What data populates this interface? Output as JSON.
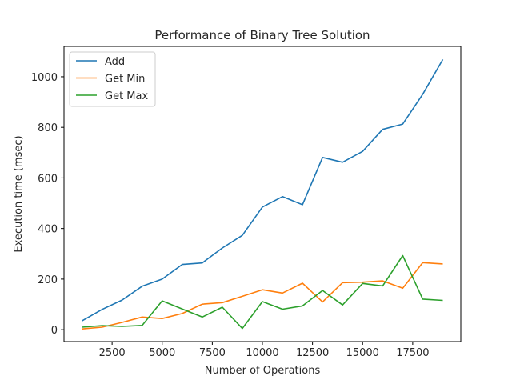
{
  "chart_data": {
    "type": "line",
    "title": "Performance of Binary Tree Solution",
    "xlabel": "Number of Operations",
    "ylabel": "Execution time (msec)",
    "xlim": [
      100,
      19900
    ],
    "ylim": [
      -47,
      1120
    ],
    "xticks": [
      2500,
      5000,
      7500,
      10000,
      12500,
      15000,
      17500
    ],
    "xtick_labels": [
      "2500",
      "5000",
      "7500",
      "10000",
      "12500",
      "15000",
      "17500"
    ],
    "yticks": [
      0,
      200,
      400,
      600,
      800,
      1000
    ],
    "ytick_labels": [
      "0",
      "200",
      "400",
      "600",
      "800",
      "1000"
    ],
    "grid": false,
    "legend_position": "upper-left",
    "x": [
      1000,
      2000,
      3000,
      4000,
      5000,
      6000,
      7000,
      8000,
      9000,
      10000,
      11000,
      12000,
      13000,
      14000,
      15000,
      16000,
      17000,
      18000,
      19000
    ],
    "series": [
      {
        "name": "Add",
        "color": "#1f77b4",
        "values": [
          35,
          80,
          117,
          172,
          200,
          258,
          264,
          323,
          373,
          485,
          526,
          494,
          681,
          662,
          705,
          792,
          813,
          931,
          1068
        ]
      },
      {
        "name": "Get Min",
        "color": "#ff7f0e",
        "values": [
          3,
          10,
          29,
          50,
          44,
          64,
          101,
          107,
          132,
          158,
          145,
          184,
          110,
          186,
          188,
          193,
          164,
          265,
          260
        ]
      },
      {
        "name": "Get Max",
        "color": "#2ca02c",
        "values": [
          10,
          16,
          13,
          17,
          114,
          82,
          50,
          89,
          5,
          111,
          81,
          94,
          155,
          98,
          183,
          173,
          293,
          121,
          116
        ]
      }
    ]
  }
}
